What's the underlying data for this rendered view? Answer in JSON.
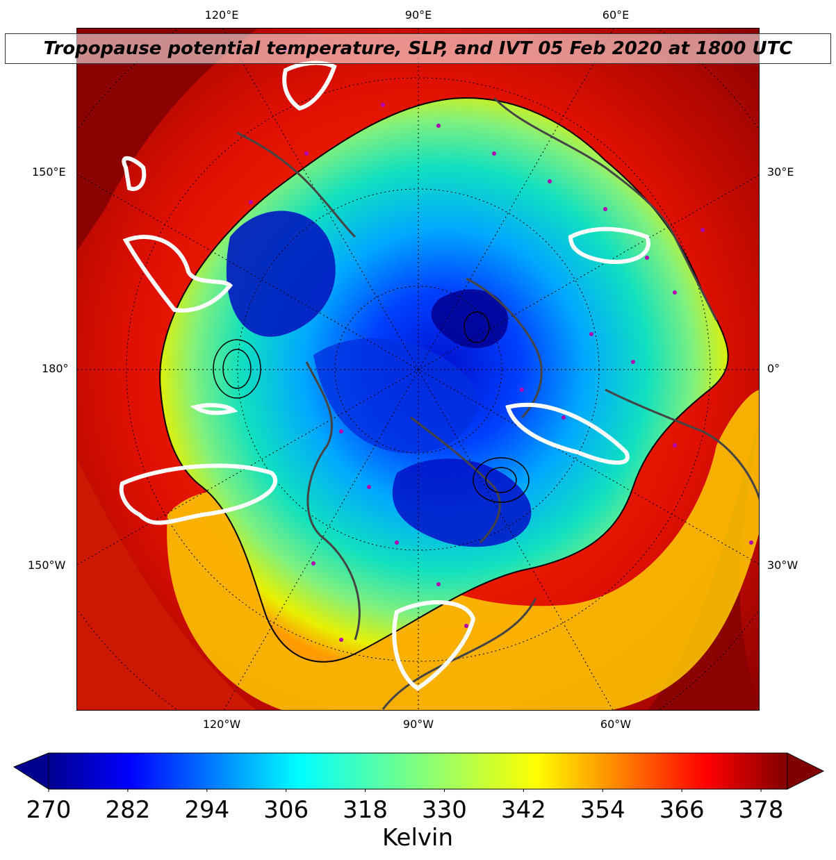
{
  "title": "Tropopause potential temperature, SLP, and IVT 05 Feb 2020 at 1800 UTC",
  "map": {
    "projection": "north-polar-stereographic",
    "center_lon": "90°W",
    "top_labels": [
      "120°E",
      "90°E",
      "60°E"
    ],
    "bottom_labels": [
      "120°W",
      "90°W",
      "60°W"
    ],
    "left_labels": [
      "150°E",
      "180°",
      "150°W"
    ],
    "right_labels": [
      "30°E",
      "0°",
      "30°W"
    ],
    "colors": {
      "background_warm": "#8b0000",
      "coast": "#444444",
      "ivt_contour": "#ffffff",
      "station_marker": "#b000b0"
    }
  },
  "colorbar": {
    "ticks": [
      "270",
      "282",
      "294",
      "306",
      "318",
      "330",
      "342",
      "354",
      "366",
      "378"
    ],
    "min": 270,
    "max": 382,
    "extend": "both",
    "colormap": "jet",
    "label": "Kelvin"
  }
}
